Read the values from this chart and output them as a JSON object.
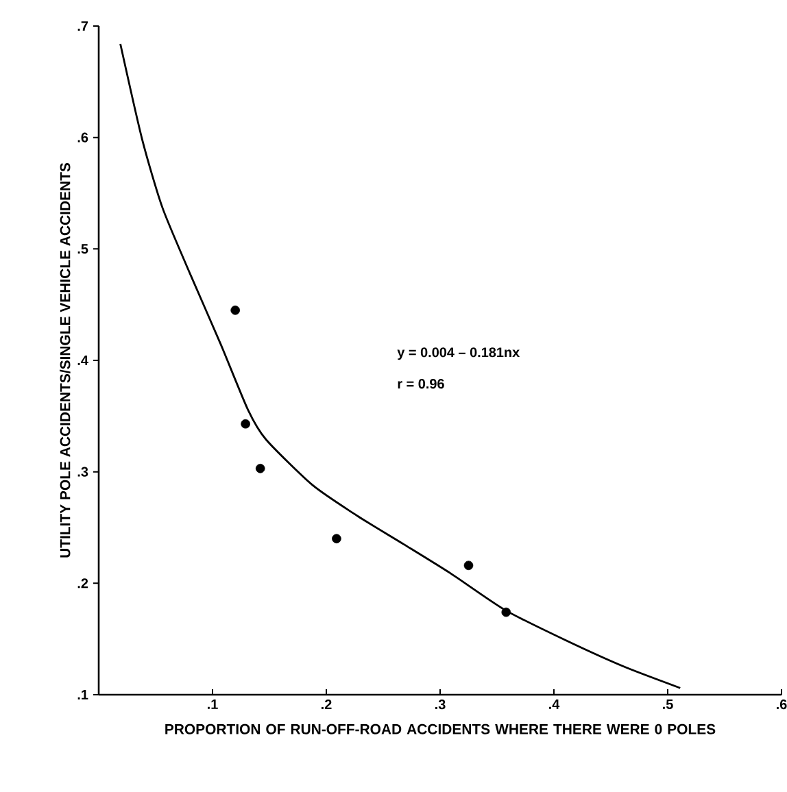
{
  "chart_data": {
    "type": "scatter",
    "xlabel": "PROPORTION OF RUN-OFF-ROAD ACCIDENTS WHERE THERE WERE 0 POLES",
    "ylabel": "UTILITY POLE ACCIDENTS/SINGLE VEHICLE ACCIDENTS",
    "xlim": [
      0,
      0.6
    ],
    "ylim": [
      0.1,
      0.7
    ],
    "xticks": [
      {
        "value": 0.1,
        "label": ".1"
      },
      {
        "value": 0.2,
        "label": ".2"
      },
      {
        "value": 0.3,
        "label": ".3"
      },
      {
        "value": 0.4,
        "label": ".4"
      },
      {
        "value": 0.5,
        "label": ".5"
      },
      {
        "value": 0.6,
        "label": ".6"
      }
    ],
    "yticks": [
      {
        "value": 0.1,
        "label": ".1"
      },
      {
        "value": 0.2,
        "label": ".2"
      },
      {
        "value": 0.3,
        "label": ".3"
      },
      {
        "value": 0.4,
        "label": ".4"
      },
      {
        "value": 0.5,
        "label": ".5"
      },
      {
        "value": 0.6,
        "label": ".6"
      },
      {
        "value": 0.7,
        "label": ".7"
      }
    ],
    "marker": "circle",
    "grid": false,
    "annotations": [
      "y = 0.004 – 0.181nx",
      "r = 0.96"
    ],
    "series": [
      {
        "color": "#000000",
        "x": [
          0.12,
          0.129,
          0.142,
          0.209,
          0.325,
          0.358
        ],
        "values": [
          0.445,
          0.343,
          0.303,
          0.24,
          0.216,
          0.174
        ]
      },
      {
        "type": "line",
        "color": "#000000",
        "marker": "none",
        "x": [
          0.019,
          0.038,
          0.056,
          0.081,
          0.107,
          0.131,
          0.147,
          0.188,
          0.228,
          0.268,
          0.309,
          0.357,
          0.41,
          0.462,
          0.511
        ],
        "values": [
          0.684,
          0.599,
          0.537,
          0.476,
          0.415,
          0.356,
          0.329,
          0.288,
          0.26,
          0.235,
          0.209,
          0.176,
          0.149,
          0.125,
          0.106
        ]
      }
    ]
  }
}
